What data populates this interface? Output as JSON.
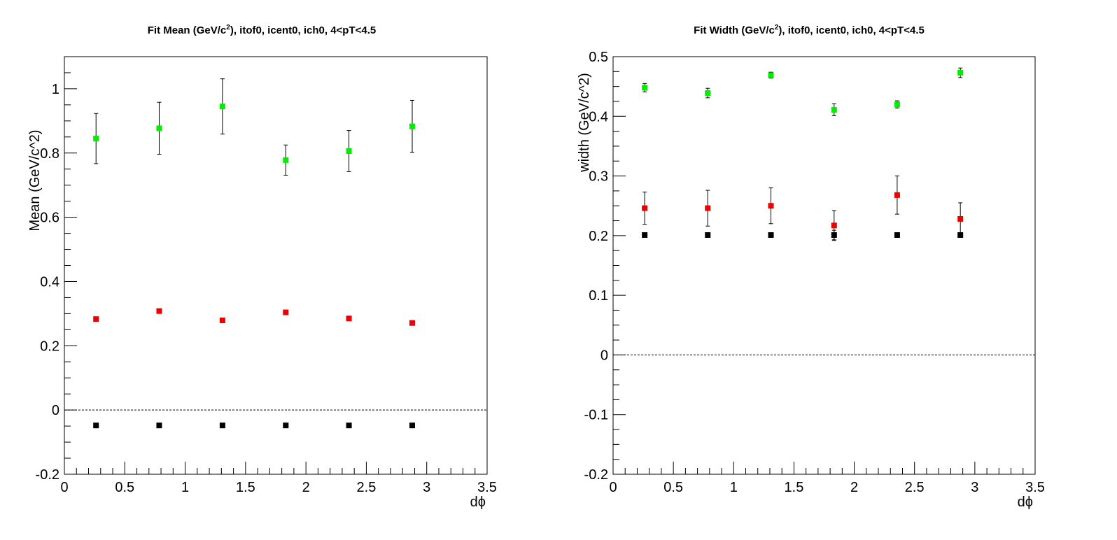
{
  "charts": [
    {
      "title": {
        "main": "Fit Mean (GeV/c",
        "sup": "2",
        "rest": "), itof0, icent0, ich0, 4<pT<4.5"
      },
      "xlabel": "dϕ",
      "ylabel": "Mean (GeV/c^2)",
      "xlim": [
        0,
        3.5
      ],
      "ylim": [
        -0.2,
        1.1
      ],
      "xticks": [
        0,
        0.5,
        1,
        1.5,
        2,
        2.5,
        3,
        3.5
      ],
      "xtick_labels": [
        "0",
        "0.5",
        "1",
        "1.5",
        "2",
        "2.5",
        "3",
        "3.5"
      ],
      "yticks": [
        -0.2,
        0,
        0.2,
        0.4,
        0.6,
        0.8,
        1
      ],
      "ytick_labels": [
        "-0.2",
        "0",
        "0.2",
        "0.4",
        "0.6",
        "0.8",
        "1"
      ],
      "zero_line": 0
    },
    {
      "title": {
        "main": "Fit Width (GeV/c",
        "sup": "2",
        "rest": "), itof0, icent0, ich0, 4<pT<4.5"
      },
      "xlabel": "dϕ",
      "ylabel": "width (GeV/c^2)",
      "xlim": [
        0,
        3.5
      ],
      "ylim": [
        -0.2,
        0.5
      ],
      "xticks": [
        0,
        0.5,
        1,
        1.5,
        2,
        2.5,
        3,
        3.5
      ],
      "xtick_labels": [
        "0",
        "0.5",
        "1",
        "1.5",
        "2",
        "2.5",
        "3",
        "3.5"
      ],
      "yticks": [
        -0.2,
        -0.1,
        0,
        0.1,
        0.2,
        0.3,
        0.4,
        0.5
      ],
      "ytick_labels": [
        "-0.2",
        "-0.1",
        "0",
        "0.1",
        "0.2",
        "0.3",
        "0.4",
        "0.5"
      ],
      "zero_line": 0
    }
  ],
  "chart_data": [
    {
      "type": "scatter",
      "title": "Fit Mean (GeV/c^2), itof0, icent0, ich0, 4<pT<4.5",
      "xlabel": "dϕ",
      "ylabel": "Mean (GeV/c^2)",
      "xlim": [
        0,
        3.5
      ],
      "ylim": [
        -0.2,
        1.1
      ],
      "x": [
        0.262,
        0.785,
        1.309,
        1.833,
        2.356,
        2.88
      ],
      "series": [
        {
          "color": "#00ee00",
          "values": [
            0.845,
            0.877,
            0.945,
            0.778,
            0.806,
            0.883
          ],
          "errors": [
            0.078,
            0.081,
            0.086,
            0.047,
            0.064,
            0.081
          ]
        },
        {
          "color": "#ee0000",
          "values": [
            0.283,
            0.308,
            0.279,
            0.304,
            0.285,
            0.271
          ],
          "errors": [
            0,
            0,
            0,
            0,
            0,
            0
          ]
        },
        {
          "color": "#000000",
          "values": [
            -0.048,
            -0.048,
            -0.048,
            -0.048,
            -0.048,
            -0.048
          ],
          "errors": [
            0,
            0,
            0,
            0,
            0,
            0
          ]
        }
      ]
    },
    {
      "type": "scatter",
      "title": "Fit Width (GeV/c^2), itof0, icent0, ich0, 4<pT<4.5",
      "xlabel": "dϕ",
      "ylabel": "width (GeV/c^2)",
      "xlim": [
        0,
        3.5
      ],
      "ylim": [
        -0.2,
        0.5
      ],
      "x": [
        0.262,
        0.785,
        1.309,
        1.833,
        2.356,
        2.88
      ],
      "series": [
        {
          "color": "#00ee00",
          "values": [
            0.448,
            0.439,
            0.469,
            0.411,
            0.42,
            0.473
          ],
          "errors": [
            0.007,
            0.008,
            0.005,
            0.01,
            0.006,
            0.008
          ]
        },
        {
          "color": "#ee0000",
          "values": [
            0.246,
            0.246,
            0.25,
            0.217,
            0.268,
            0.228
          ],
          "errors": [
            0.027,
            0.03,
            0.03,
            0.025,
            0.032,
            0.027
          ]
        },
        {
          "color": "#000000",
          "values": [
            0.201,
            0.201,
            0.201,
            0.201,
            0.201,
            0.201
          ],
          "errors": [
            0,
            0,
            0,
            0.008,
            0,
            0
          ]
        }
      ]
    }
  ]
}
